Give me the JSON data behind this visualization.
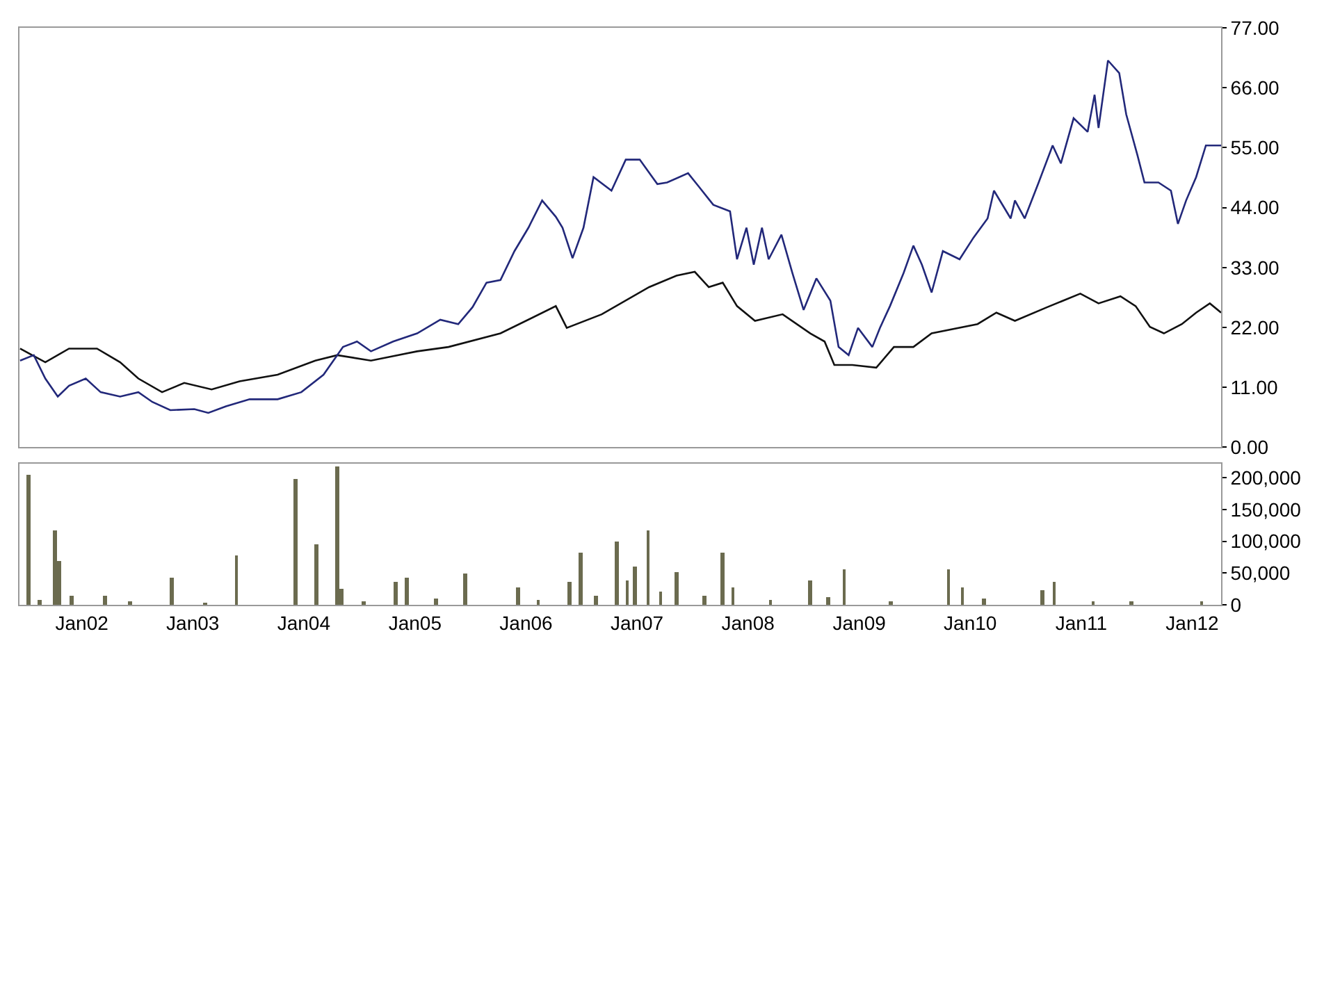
{
  "chart_data": [
    {
      "type": "line",
      "xlim": [
        "2001-06-10",
        "2012-04-05"
      ],
      "ylim": [
        0,
        77
      ],
      "tick_labels": "y",
      "grid": false,
      "yticks": [
        {
          "value": 0,
          "label": "0.00"
        },
        {
          "value": 11,
          "label": "11.00"
        },
        {
          "value": 22,
          "label": "22.00"
        },
        {
          "value": 33,
          "label": "33.00"
        },
        {
          "value": 44,
          "label": "44.00"
        },
        {
          "value": 55,
          "label": "55.00"
        },
        {
          "value": 66,
          "label": "66.00"
        },
        {
          "value": 77,
          "label": "77.00"
        }
      ],
      "series": [
        {
          "color": "#111111",
          "x": [
            "2001-06-12",
            "2001-09-03",
            "2001-11-20",
            "2002-02-20",
            "2002-05-07",
            "2002-07-06",
            "2002-09-22",
            "2002-12-04",
            "2003-03-04",
            "2003-06-04",
            "2003-10-07",
            "2004-02-08",
            "2004-04-20",
            "2004-08-09",
            "2005-01-08",
            "2005-04-21",
            "2005-10-09",
            "2006-04-09",
            "2006-05-15",
            "2006-09-07",
            "2007-02-10",
            "2007-05-11",
            "2007-07-10",
            "2007-08-25",
            "2007-10-10",
            "2007-11-26",
            "2008-01-24",
            "2008-04-24",
            "2008-07-24",
            "2008-09-09",
            "2008-10-11",
            "2008-12-09",
            "2009-02-26",
            "2009-04-25",
            "2009-06-28",
            "2009-08-27",
            "2010-01-25",
            "2010-03-28",
            "2010-05-28",
            "2010-09-11",
            "2010-12-29",
            "2011-02-27",
            "2011-05-10",
            "2011-06-29",
            "2011-08-15",
            "2011-09-30",
            "2011-11-28",
            "2012-01-14",
            "2012-02-28",
            "2012-04-05"
          ],
          "values": [
            18.1,
            15.6,
            18.1,
            18.1,
            15.6,
            12.6,
            10.1,
            11.8,
            10.6,
            12.1,
            13.3,
            15.9,
            16.9,
            15.9,
            17.6,
            18.4,
            20.9,
            25.9,
            21.9,
            24.4,
            29.4,
            31.5,
            32.2,
            29.4,
            30.2,
            25.9,
            23.2,
            24.4,
            20.9,
            19.4,
            15.1,
            15.1,
            14.6,
            18.4,
            18.4,
            20.9,
            22.6,
            24.7,
            23.2,
            25.7,
            28.2,
            26.4,
            27.7,
            25.9,
            22.1,
            20.9,
            22.6,
            24.7,
            26.4,
            24.7
          ]
        },
        {
          "color": "#22287a",
          "x": [
            "2001-06-12",
            "2001-07-27",
            "2001-09-03",
            "2001-10-14",
            "2001-11-20",
            "2002-01-14",
            "2002-03-04",
            "2002-05-07",
            "2002-07-06",
            "2002-08-21",
            "2002-10-19",
            "2003-01-06",
            "2003-02-21",
            "2003-04-20",
            "2003-07-07",
            "2003-10-07",
            "2003-12-24",
            "2004-03-06",
            "2004-05-09",
            "2004-06-24",
            "2004-08-09",
            "2004-10-21",
            "2005-01-08",
            "2005-03-25",
            "2005-05-23",
            "2005-07-09",
            "2005-08-24",
            "2005-10-09",
            "2005-11-24",
            "2006-01-09",
            "2006-02-23",
            "2006-04-09",
            "2006-05-01",
            "2006-06-03",
            "2006-07-09",
            "2006-08-11",
            "2006-10-09",
            "2006-11-25",
            "2007-01-10",
            "2007-03-09",
            "2007-04-10",
            "2007-06-18",
            "2007-07-24",
            "2007-09-09",
            "2007-11-03",
            "2007-11-26",
            "2007-12-27",
            "2008-01-20",
            "2008-02-16",
            "2008-03-09",
            "2008-04-20",
            "2008-05-26",
            "2008-07-02",
            "2008-08-13",
            "2008-09-28",
            "2008-10-25",
            "2008-11-27",
            "2008-12-28",
            "2009-02-13",
            "2009-03-10",
            "2009-04-12",
            "2009-05-27",
            "2009-06-28",
            "2009-07-26",
            "2009-08-27",
            "2009-10-03",
            "2009-11-27",
            "2010-01-12",
            "2010-02-27",
            "2010-03-20",
            "2010-05-14",
            "2010-05-28",
            "2010-06-29",
            "2010-08-14",
            "2010-09-29",
            "2010-10-26",
            "2010-12-07",
            "2011-01-22",
            "2011-02-14",
            "2011-02-27",
            "2011-03-30",
            "2011-05-06",
            "2011-05-29",
            "2011-07-05",
            "2011-07-28",
            "2011-09-12",
            "2011-10-23",
            "2011-11-15",
            "2011-12-12",
            "2012-01-14",
            "2012-02-15",
            "2012-04-05"
          ],
          "values": [
            15.9,
            16.9,
            12.6,
            9.3,
            11.3,
            12.6,
            10.1,
            9.3,
            10.1,
            8.3,
            6.8,
            7.0,
            6.3,
            7.5,
            8.8,
            8.8,
            10.1,
            13.3,
            18.4,
            19.4,
            17.6,
            19.4,
            20.9,
            23.4,
            22.6,
            25.7,
            30.2,
            30.7,
            36.0,
            40.3,
            45.3,
            42.3,
            40.3,
            34.7,
            40.3,
            49.6,
            47.1,
            52.8,
            52.8,
            48.3,
            48.6,
            50.3,
            47.8,
            44.5,
            43.3,
            34.5,
            40.3,
            33.5,
            40.3,
            34.5,
            39.0,
            32.0,
            25.2,
            31.0,
            26.9,
            18.4,
            16.9,
            21.9,
            18.4,
            21.9,
            25.9,
            32.0,
            37.0,
            33.5,
            28.4,
            36.0,
            34.5,
            38.5,
            42.0,
            47.1,
            42.0,
            45.3,
            42.0,
            48.6,
            55.4,
            52.1,
            60.4,
            57.9,
            64.7,
            58.6,
            71.0,
            68.7,
            61.1,
            53.6,
            48.6,
            48.6,
            47.1,
            41.0,
            45.3,
            49.6,
            55.4,
            55.4
          ]
        }
      ]
    },
    {
      "type": "bar",
      "xlim": [
        "2001-06-10",
        "2012-04-05"
      ],
      "ylim": [
        0,
        222000
      ],
      "grid": false,
      "xticks": [
        {
          "value": "2002-01-01",
          "label": "Jan02"
        },
        {
          "value": "2003-01-01",
          "label": "Jan03"
        },
        {
          "value": "2004-01-01",
          "label": "Jan04"
        },
        {
          "value": "2005-01-01",
          "label": "Jan05"
        },
        {
          "value": "2006-01-01",
          "label": "Jan06"
        },
        {
          "value": "2007-01-01",
          "label": "Jan07"
        },
        {
          "value": "2008-01-01",
          "label": "Jan08"
        },
        {
          "value": "2009-01-01",
          "label": "Jan09"
        },
        {
          "value": "2010-01-01",
          "label": "Jan10"
        },
        {
          "value": "2011-01-01",
          "label": "Jan11"
        },
        {
          "value": "2012-01-01",
          "label": "Jan12"
        }
      ],
      "yticks": [
        0,
        {
          "value": 50000,
          "label": "50,000"
        },
        {
          "value": 100000,
          "label": "100,000"
        },
        {
          "value": 150000,
          "label": "150,000"
        },
        {
          "value": 200000,
          "label": "200,000"
        }
      ],
      "series": [
        {
          "color": "#6b6b4f",
          "x": [
            "2001-07-09",
            "2001-08-15",
            "2001-10-04",
            "2001-10-18",
            "2001-11-29",
            "2002-03-17",
            "2002-06-10",
            "2002-10-23",
            "2003-02-10",
            "2003-05-25",
            "2003-12-05",
            "2004-02-12",
            "2004-04-20",
            "2004-05-04",
            "2004-07-15",
            "2004-10-29",
            "2004-12-06",
            "2005-03-10",
            "2005-06-15",
            "2005-12-07",
            "2006-02-10",
            "2006-05-24",
            "2006-06-29",
            "2006-08-20",
            "2006-10-27",
            "2006-11-29",
            "2006-12-26",
            "2007-02-06",
            "2007-03-20",
            "2007-05-11",
            "2007-08-10",
            "2007-10-10",
            "2007-11-12",
            "2008-03-15",
            "2008-07-24",
            "2008-09-20",
            "2008-11-13",
            "2009-04-15",
            "2009-10-21",
            "2009-12-06",
            "2010-02-15",
            "2010-08-27",
            "2010-10-04",
            "2011-02-10",
            "2011-06-15",
            "2012-02-01"
          ],
          "values": [
            204000,
            8000,
            116000,
            69000,
            15000,
            15000,
            5000,
            42000,
            4000,
            78000,
            198000,
            96000,
            218000,
            25000,
            6000,
            36000,
            42000,
            10000,
            49000,
            27000,
            8000,
            36000,
            82000,
            15000,
            100000,
            38000,
            60000,
            116000,
            20000,
            51000,
            15000,
            82000,
            27000,
            8000,
            38000,
            12000,
            56000,
            6000,
            56000,
            27000,
            10000,
            22000,
            36000,
            5000,
            5000,
            5000
          ]
        }
      ]
    }
  ]
}
